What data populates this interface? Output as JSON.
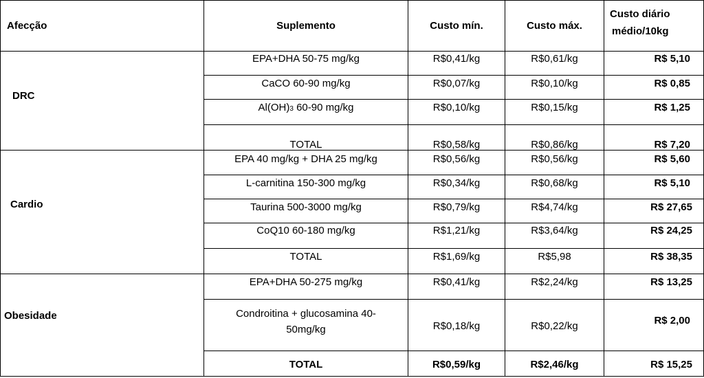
{
  "header": {
    "condition": "Afecção",
    "supplement": "Suplemento",
    "min_cost": "Custo mín.",
    "max_cost": "Custo máx.",
    "daily_cost_line1": "Custo diário",
    "daily_cost_line2": "médio/10kg"
  },
  "groups": [
    {
      "name": "DRC",
      "rows": [
        {
          "supplement": "EPA+DHA 50-75 mg/kg",
          "min": "R$0,41/kg",
          "max": "R$0,61/kg",
          "daily": "R$ 5,10"
        },
        {
          "supplement": "CaCO 60-90 mg/kg",
          "min": "R$0,07/kg",
          "max": "R$0,10/kg",
          "daily": "R$ 0,85"
        },
        {
          "supplement_prefix": "Al(OH)",
          "supplement_sub": "3",
          "supplement_suffix": " 60-90 mg/kg",
          "min": "R$0,10/kg",
          "max": "R$0,15/kg",
          "daily": "R$ 1,25"
        },
        {
          "supplement": "TOTAL",
          "min": "R$0,58/kg",
          "max": "R$0,86/kg",
          "daily": "R$ 7,20"
        }
      ]
    },
    {
      "name": "Cardio",
      "rows": [
        {
          "supplement": "EPA 40 mg/kg + DHA 25 mg/kg",
          "min": "R$0,56/kg",
          "max": "R$0,56/kg",
          "daily": "R$ 5,60"
        },
        {
          "supplement": "L-carnitina 150-300 mg/kg",
          "min": "R$0,34/kg",
          "max": "R$0,68/kg",
          "daily": "R$ 5,10"
        },
        {
          "supplement": "Taurina 500-3000 mg/kg",
          "min": "R$0,79/kg",
          "max": "R$4,74/kg",
          "daily": "R$ 27,65"
        },
        {
          "supplement": "CoQ10 60-180 mg/kg",
          "min": "R$1,21/kg",
          "max": "R$3,64/kg",
          "daily": "R$ 24,25"
        },
        {
          "supplement": "TOTAL",
          "min": "R$1,69/kg",
          "max": "R$5,98",
          "daily": "R$ 38,35"
        }
      ]
    },
    {
      "name": "Obesidade",
      "rows": [
        {
          "supplement": "EPA+DHA 50-275 mg/kg",
          "min": "R$0,41/kg",
          "max": "R$2,24/kg",
          "daily": "R$ 13,25"
        },
        {
          "supplement_line1": "Condroitina + glucosamina 40-",
          "supplement_line2": "50mg/kg",
          "min": "R$0,18/kg",
          "max": "R$0,22/kg",
          "daily": "R$ 2,00"
        },
        {
          "supplement": "TOTAL",
          "min": "R$0,59/kg",
          "max": "R$2,46/kg",
          "daily": "R$ 15,25"
        }
      ]
    }
  ]
}
